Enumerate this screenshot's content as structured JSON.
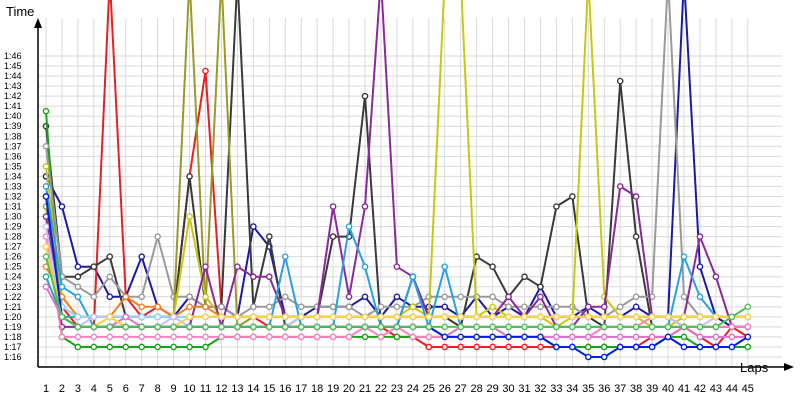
{
  "chart_data": {
    "type": "line",
    "ylabel": "Time",
    "xlabel": "Laps",
    "grid": true,
    "x": [
      1,
      2,
      3,
      4,
      5,
      6,
      7,
      8,
      9,
      10,
      11,
      12,
      13,
      14,
      15,
      16,
      17,
      18,
      19,
      20,
      21,
      22,
      23,
      24,
      25,
      26,
      27,
      28,
      29,
      30,
      31,
      32,
      33,
      34,
      35,
      36,
      37,
      38,
      39,
      40,
      41,
      42,
      43,
      44,
      45
    ],
    "x_tick_labels": [
      "1",
      "2",
      "3",
      "4",
      "5",
      "6",
      "7",
      "8",
      "9",
      "10",
      "11",
      "12",
      "13",
      "14",
      "15",
      "16",
      "17",
      "18",
      "19",
      "20",
      "21",
      "22",
      "23",
      "24",
      "25",
      "26",
      "27",
      "28",
      "29",
      "30",
      "31",
      "32",
      "33",
      "34",
      "35",
      "36",
      "37",
      "38",
      "39",
      "40",
      "41",
      "42",
      "43",
      "44",
      "45"
    ],
    "y_tick_labels": [
      "1:16",
      "1:17",
      "1:18",
      "1:19",
      "1:20",
      "1:21",
      "1:22",
      "1:23",
      "1:24",
      "1:25",
      "1:26",
      "1:27",
      "1:28",
      "1:29",
      "1:30",
      "1:31",
      "1:32",
      "1:33",
      "1:34",
      "1:35",
      "1:36",
      "1:37",
      "1:38",
      "1:39",
      "1:40",
      "1:41",
      "1:42",
      "1:43",
      "1:44",
      "1:45",
      "1:46"
    ],
    "y_unit": "seconds",
    "ylim": [
      75,
      107
    ],
    "y_tick_values": [
      76,
      77,
      78,
      79,
      80,
      81,
      82,
      83,
      84,
      85,
      86,
      87,
      88,
      89,
      90,
      91,
      92,
      93,
      94,
      95,
      96,
      97,
      98,
      99,
      100,
      101,
      102,
      103,
      104,
      105,
      106
    ],
    "series": [
      {
        "color": "#1a1aa6",
        "values": [
          94,
          91,
          85,
          85,
          82,
          82,
          86,
          81,
          80,
          82,
          81,
          81,
          80,
          89,
          87,
          80,
          80,
          81,
          81,
          81,
          82,
          80,
          82,
          81,
          81,
          81,
          80,
          82,
          80,
          81,
          80,
          83,
          80,
          80,
          81,
          80,
          80,
          81,
          80,
          80,
          130,
          85,
          80,
          79,
          79
        ]
      },
      {
        "color": "#e82020",
        "values": [
          92,
          81,
          79,
          79,
          130,
          82,
          80,
          81,
          80,
          94,
          104.5,
          81,
          80,
          80,
          79,
          79,
          79,
          79,
          79,
          79,
          79,
          79,
          78,
          78,
          77,
          77,
          77,
          77,
          77,
          77,
          77,
          77,
          77,
          77,
          77,
          77,
          77,
          77,
          78,
          78,
          79,
          78,
          77,
          79,
          78
        ]
      },
      {
        "color": "#3a3a3a",
        "values": [
          99,
          84,
          84,
          85,
          86,
          80,
          80,
          80,
          80,
          94,
          81,
          81,
          130,
          81,
          88,
          79,
          80,
          80,
          88,
          88,
          102,
          79,
          79,
          84,
          80,
          80,
          79,
          86,
          85,
          82,
          84,
          83,
          91,
          92,
          80,
          79,
          103.5,
          88,
          79,
          79,
          79,
          79,
          79,
          79,
          79
        ]
      },
      {
        "color": "#17a317",
        "values": [
          100.5,
          78,
          77,
          77,
          77,
          77,
          77,
          77,
          77,
          77,
          77,
          78,
          78,
          78,
          78,
          78,
          78,
          78,
          78,
          78,
          78,
          78,
          78,
          78,
          78,
          78,
          78,
          78,
          78,
          78,
          78,
          78,
          77,
          77,
          77,
          77,
          77,
          77,
          77,
          78,
          78,
          77,
          77,
          77,
          77
        ]
      },
      {
        "color": "#9a9a9a",
        "values": [
          97,
          84,
          83,
          82,
          84,
          82,
          82,
          88,
          82,
          82,
          81,
          81,
          80,
          81,
          81,
          82,
          81,
          81,
          81,
          81,
          80,
          81,
          81,
          81,
          82,
          82,
          82,
          82,
          82,
          81,
          81,
          81,
          81,
          81,
          80,
          80,
          81,
          82,
          82,
          130,
          82,
          80,
          80,
          80,
          80
        ]
      },
      {
        "color": "#9a9a2a",
        "values": [
          91,
          81,
          80,
          80,
          80,
          80,
          80,
          80,
          80,
          130,
          81,
          130,
          79,
          80,
          80,
          80,
          80,
          80,
          80,
          80,
          80,
          80,
          80,
          80,
          80,
          80,
          80,
          80,
          80,
          80,
          80,
          80,
          80,
          80,
          80,
          80,
          80,
          80,
          80,
          80,
          80,
          80,
          80,
          80,
          80
        ]
      },
      {
        "color": "#c8c810",
        "values": [
          95,
          82,
          80,
          80,
          80,
          80,
          80,
          80,
          80,
          90,
          82,
          80,
          80,
          80,
          80,
          80,
          80,
          80,
          80,
          80,
          80,
          80,
          80,
          81,
          80,
          130,
          130,
          80,
          81,
          80,
          80,
          80,
          79,
          80,
          130,
          82,
          80,
          80,
          79,
          79,
          80,
          80,
          80,
          80,
          80
        ]
      },
      {
        "color": "#8a2a9a",
        "values": [
          90,
          79,
          79,
          79,
          79,
          79,
          79,
          79,
          79,
          79,
          85,
          79,
          85,
          84,
          84,
          80,
          80,
          80,
          91,
          82,
          91,
          130,
          85,
          84,
          80,
          80,
          80,
          80,
          80,
          82,
          80,
          82,
          79,
          79,
          81,
          81,
          93,
          92,
          80,
          80,
          80,
          88,
          84,
          79,
          79
        ]
      },
      {
        "color": "#2aa0e0",
        "values": [
          93,
          83,
          82,
          79,
          79,
          79,
          79,
          79,
          79,
          79,
          79,
          79,
          79,
          79,
          79,
          86,
          79,
          79,
          79,
          89,
          85,
          79,
          79,
          84,
          79,
          85,
          79,
          79,
          79,
          79,
          79,
          79,
          79,
          79,
          79,
          79,
          79,
          79,
          79,
          79,
          86,
          82,
          80,
          80,
          80
        ]
      },
      {
        "color": "#ff80c0",
        "values": [
          88,
          78,
          78,
          78,
          78,
          78,
          78,
          78,
          78,
          78,
          78,
          78,
          78,
          78,
          78,
          78,
          78,
          78,
          78,
          78,
          79,
          78,
          79,
          78,
          78,
          78,
          78,
          78,
          78,
          78,
          78,
          78,
          78,
          78,
          78,
          79,
          79,
          79,
          80,
          80,
          79,
          79,
          79,
          79,
          79
        ]
      },
      {
        "color": "#20b0a0",
        "values": [
          84,
          80,
          80,
          80,
          80,
          80,
          80,
          80,
          80,
          80,
          80,
          80,
          80,
          80,
          80,
          80,
          80,
          80,
          80,
          80,
          80,
          80,
          80,
          80,
          80,
          80,
          80,
          80,
          80,
          80,
          80,
          80,
          80,
          80,
          80,
          80,
          80,
          80,
          80,
          80,
          80,
          80,
          80,
          80,
          80
        ]
      },
      {
        "color": "#f08020",
        "values": [
          85,
          82,
          80,
          80,
          80,
          82,
          81,
          81,
          80,
          81,
          81,
          80,
          80,
          80,
          80,
          80,
          80,
          80,
          80,
          80,
          80,
          80,
          80,
          80,
          80,
          80,
          80,
          80,
          80,
          80,
          80,
          80,
          80,
          80,
          80,
          80,
          80,
          80,
          80,
          80,
          80,
          80,
          80,
          80,
          80
        ]
      },
      {
        "color": "#a0d0ff",
        "values": [
          86,
          81,
          80,
          80,
          80,
          80,
          80,
          80,
          80,
          80,
          80,
          80,
          80,
          80,
          80,
          80,
          80,
          80,
          80,
          80,
          80,
          80,
          80,
          80,
          80,
          80,
          80,
          80,
          80,
          80,
          80,
          80,
          80,
          80,
          80,
          80,
          80,
          80,
          80,
          80,
          80,
          80,
          80,
          80,
          80
        ]
      },
      {
        "color": "#c0c0ff",
        "values": [
          89,
          80,
          79,
          80,
          80,
          79,
          79,
          79,
          80,
          79,
          79,
          79,
          79,
          79,
          79,
          79,
          80,
          80,
          80,
          80,
          80,
          80,
          80,
          80,
          80,
          80,
          80,
          80,
          80,
          80,
          80,
          80,
          80,
          80,
          80,
          80,
          80,
          80,
          80,
          80,
          79,
          79,
          80,
          80,
          80
        ]
      },
      {
        "color": "#e070d0",
        "values": [
          83,
          80,
          79,
          79,
          79,
          80,
          79,
          79,
          79,
          79,
          79,
          79,
          79,
          79,
          79,
          79,
          79,
          79,
          79,
          79,
          79,
          79,
          79,
          79,
          79,
          78,
          79,
          79,
          79,
          78,
          78,
          78,
          78,
          78,
          78,
          78,
          78,
          78,
          78,
          78,
          79,
          78,
          78,
          78,
          78
        ]
      },
      {
        "color": "#ffd040",
        "values": [
          87,
          80,
          79,
          79,
          80,
          79,
          79,
          79,
          79,
          80,
          80,
          80,
          80,
          80,
          80,
          80,
          80,
          80,
          80,
          80,
          80,
          80,
          80,
          80,
          80,
          80,
          80,
          80,
          80,
          80,
          80,
          80,
          80,
          80,
          80,
          80,
          80,
          80,
          80,
          80,
          80,
          80,
          80,
          80,
          80
        ]
      },
      {
        "color": "#0020e0",
        "values": [
          92,
          80,
          79,
          79,
          79,
          79,
          79,
          79,
          79,
          79,
          79,
          79,
          79,
          79,
          79,
          79,
          79,
          79,
          79,
          79,
          79,
          79,
          79,
          79,
          79,
          78,
          78,
          78,
          78,
          78,
          78,
          78,
          77,
          77,
          76,
          76,
          77,
          77,
          77,
          78,
          77,
          77,
          77,
          77,
          78
        ]
      },
      {
        "color": "#50c050",
        "values": [
          86,
          80,
          79,
          79,
          79,
          79,
          79,
          79,
          79,
          79,
          79,
          79,
          79,
          79,
          79,
          79,
          79,
          79,
          79,
          79,
          79,
          79,
          79,
          79,
          79,
          79,
          79,
          79,
          79,
          79,
          79,
          79,
          79,
          79,
          79,
          79,
          79,
          79,
          79,
          79,
          79,
          79,
          79,
          80,
          81
        ]
      }
    ]
  }
}
